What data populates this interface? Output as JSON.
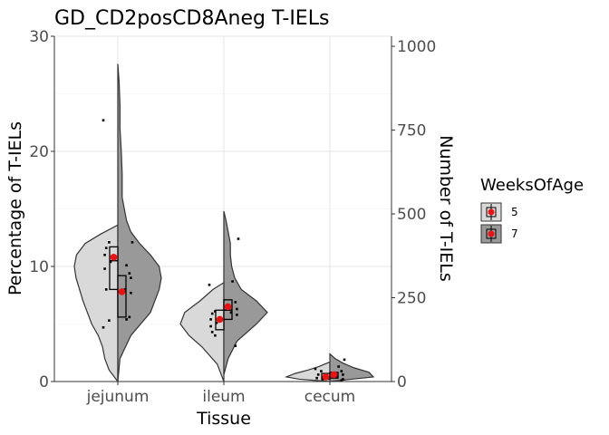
{
  "chart_data": {
    "type": "violin",
    "title": "GD_CD2posCD8Aneg T-IELs",
    "xlabel": "Tissue",
    "ylabel": "Percentage of T-IELs",
    "y2label": "Number of T-IELs",
    "categories": [
      "jejunum",
      "ileum",
      "cecum"
    ],
    "ylim": [
      0,
      30
    ],
    "yticks": [
      "0",
      "10",
      "20",
      "30"
    ],
    "y2lim": [
      0,
      1030
    ],
    "y2ticks": [
      "0",
      "250",
      "500",
      "750",
      "1000"
    ],
    "grid": true,
    "legend": {
      "title": "WeeksOfAge",
      "position": "right",
      "entries": [
        {
          "label": "5",
          "fill": "#d9d9d9"
        },
        {
          "label": "7",
          "fill": "#999999"
        }
      ]
    },
    "series": [
      {
        "name": "5",
        "fill": "#d9d9d9",
        "groups": [
          {
            "category": "jejunum",
            "violin_range": [
              0,
              13.6
            ],
            "density": [
              [
                0,
                0
              ],
              [
                1,
                0.2
              ],
              [
                2,
                0.3
              ],
              [
                3,
                0.35
              ],
              [
                4,
                0.45
              ],
              [
                5,
                0.6
              ],
              [
                6,
                0.7
              ],
              [
                7,
                0.8
              ],
              [
                8,
                0.88
              ],
              [
                9,
                0.96
              ],
              [
                10,
                1.0
              ],
              [
                11,
                0.95
              ],
              [
                12,
                0.75
              ],
              [
                12.8,
                0.4
              ],
              [
                13.6,
                0
              ]
            ],
            "box": {
              "q1": 8.0,
              "median": 10.5,
              "q3": 11.7
            },
            "mean": 10.8,
            "points": [
              22.7,
              12.1,
              11.6,
              11.0,
              10.4,
              9.8,
              8.0,
              5.3,
              4.7
            ]
          },
          {
            "category": "ileum",
            "violin_range": [
              0,
              8.6
            ],
            "density": [
              [
                0,
                0
              ],
              [
                1.5,
                0.15
              ],
              [
                3,
                0.5
              ],
              [
                4,
                0.8
              ],
              [
                5,
                1.0
              ],
              [
                6,
                0.9
              ],
              [
                7,
                0.55
              ],
              [
                8,
                0.25
              ],
              [
                8.6,
                0
              ]
            ],
            "box": {
              "q1": 4.5,
              "median": 5.4,
              "q3": 6.2
            },
            "mean": 5.4,
            "points": [
              8.4,
              6.1,
              5.9,
              5.4,
              5.1,
              4.8,
              4.3,
              4.0
            ]
          },
          {
            "category": "cecum",
            "violin_range": [
              0,
              1.7
            ],
            "density": [
              [
                0,
                0
              ],
              [
                0.2,
                0.7
              ],
              [
                0.4,
                1.0
              ],
              [
                0.7,
                0.8
              ],
              [
                1.0,
                0.5
              ],
              [
                1.3,
                0.25
              ],
              [
                1.7,
                0
              ]
            ],
            "box": {
              "q1": 0.2,
              "median": 0.4,
              "q3": 0.7
            },
            "mean": 0.4,
            "points": [
              1.1,
              0.9,
              0.6,
              0.3,
              0.2
            ]
          }
        ]
      },
      {
        "name": "7",
        "fill": "#999999",
        "groups": [
          {
            "category": "jejunum",
            "violin_range": [
              0,
              27.6
            ],
            "density": [
              [
                0,
                0
              ],
              [
                2,
                0.05
              ],
              [
                4,
                0.3
              ],
              [
                6,
                0.75
              ],
              [
                8,
                0.95
              ],
              [
                9,
                1.0
              ],
              [
                10,
                0.95
              ],
              [
                11,
                0.75
              ],
              [
                12,
                0.5
              ],
              [
                13,
                0.3
              ],
              [
                14,
                0.2
              ],
              [
                16,
                0.1
              ],
              [
                18,
                0.1
              ],
              [
                20,
                0.08
              ],
              [
                22,
                0.05
              ],
              [
                24,
                0.05
              ],
              [
                26,
                0.03
              ],
              [
                27.6,
                0
              ]
            ],
            "box": {
              "q1": 5.6,
              "median": 7.8,
              "q3": 9.2
            },
            "mean": 7.8,
            "points": [
              12.1,
              10.1,
              9.4,
              9.0,
              8.0,
              7.7,
              5.6,
              5.4
            ]
          },
          {
            "category": "ileum",
            "violin_range": [
              0.6,
              14.8
            ],
            "density": [
              [
                0.6,
                0
              ],
              [
                2,
                0.1
              ],
              [
                3.5,
                0.3
              ],
              [
                5,
                0.75
              ],
              [
                6,
                1.0
              ],
              [
                7,
                0.75
              ],
              [
                8,
                0.4
              ],
              [
                9,
                0.25
              ],
              [
                10,
                0.18
              ],
              [
                11,
                0.15
              ],
              [
                12,
                0.15
              ],
              [
                13,
                0.1
              ],
              [
                14,
                0.05
              ],
              [
                14.8,
                0
              ]
            ],
            "box": {
              "q1": 5.4,
              "median": 6.2,
              "q3": 7.1
            },
            "mean": 6.5,
            "points": [
              12.4,
              8.7,
              6.9,
              6.3,
              6.0,
              5.8,
              3.1
            ]
          },
          {
            "category": "cecum",
            "violin_range": [
              0,
              2.4
            ],
            "density": [
              [
                0,
                0
              ],
              [
                0.2,
                0.5
              ],
              [
                0.4,
                1.0
              ],
              [
                0.8,
                0.9
              ],
              [
                1.2,
                0.55
              ],
              [
                1.6,
                0.3
              ],
              [
                2.0,
                0.12
              ],
              [
                2.4,
                0
              ]
            ],
            "box": {
              "q1": 0.3,
              "median": 0.5,
              "q3": 0.8
            },
            "mean": 0.6,
            "points": [
              1.9,
              1.3,
              0.9,
              0.6,
              0.4,
              0.2,
              0.1
            ]
          }
        ]
      }
    ]
  }
}
